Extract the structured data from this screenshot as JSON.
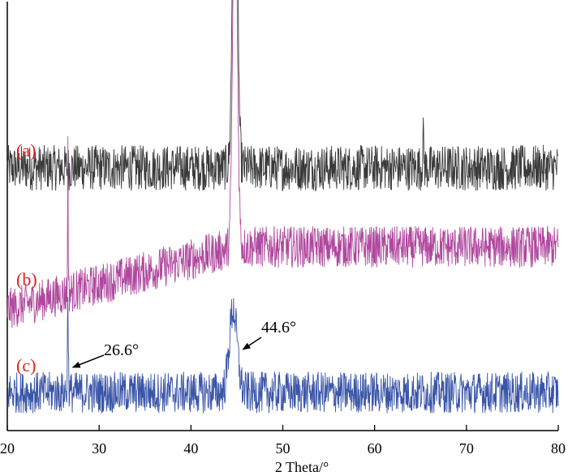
{
  "chart_data": {
    "type": "line",
    "xlabel": "2 Theta/°",
    "ylabel": "",
    "xlim": [
      20,
      80
    ],
    "xticks": [
      20,
      30,
      40,
      50,
      60,
      70,
      80
    ],
    "grid": false,
    "colors": {
      "a": "#3a3a3a",
      "b": "#b0479e",
      "c": "#3a55a8",
      "label": "#e02020"
    },
    "series": [
      {
        "name": "(a)",
        "baseline": 0.62,
        "noise": 0.055,
        "slope": 0.0,
        "peaks": [
          {
            "x": 44.8,
            "height": 1.0,
            "width": 0.35
          },
          {
            "x": 65.3,
            "height": 0.07,
            "width": 0.1
          }
        ]
      },
      {
        "name": "(b)",
        "baseline": 0.28,
        "noise": 0.05,
        "slope": 0.006,
        "peaks": [
          {
            "x": 26.6,
            "height": 0.39,
            "width": 0.04
          },
          {
            "x": 44.8,
            "height": 0.9,
            "width": 0.35
          }
        ]
      },
      {
        "name": "(c)",
        "baseline": 0.08,
        "noise": 0.05,
        "slope": 0.0,
        "peaks": [
          {
            "x": 26.6,
            "height": 0.22,
            "width": 0.07
          },
          {
            "x": 44.6,
            "height": 0.2,
            "width": 0.6
          }
        ]
      }
    ],
    "annotations": [
      {
        "text": "26.6°",
        "x": 26.6,
        "series": "(c)"
      },
      {
        "text": "44.6°",
        "x": 44.6,
        "series": "(c)"
      }
    ]
  }
}
